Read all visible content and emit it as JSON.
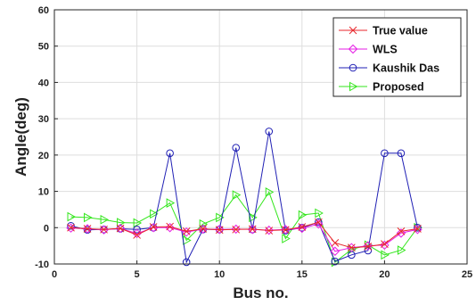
{
  "chart_data": {
    "type": "line",
    "title": "",
    "xlabel": "Bus no.",
    "ylabel": "Angle(deg)",
    "xlim": [
      0,
      25
    ],
    "ylim": [
      -10,
      60
    ],
    "xticks": [
      0,
      5,
      10,
      15,
      20,
      25
    ],
    "yticks": [
      -10,
      0,
      10,
      20,
      30,
      40,
      50,
      60
    ],
    "grid": true,
    "legend_position": "top-right",
    "x": [
      1,
      2,
      3,
      4,
      5,
      6,
      7,
      8,
      9,
      10,
      11,
      12,
      13,
      14,
      15,
      16,
      17,
      18,
      19,
      20,
      21,
      22
    ],
    "series": [
      {
        "name": "True value",
        "color": "#e8262b",
        "marker": "x",
        "values": [
          0.0,
          -0.3,
          -0.5,
          -0.2,
          -2.0,
          0.2,
          0.3,
          -1.0,
          -0.3,
          -0.6,
          -0.5,
          -0.4,
          -0.8,
          -0.6,
          0.2,
          1.5,
          -4.2,
          -5.5,
          -5.2,
          -4.5,
          -1.0,
          -0.3
        ]
      },
      {
        "name": "WLS",
        "color": "#e61ee6",
        "marker": "diamond",
        "values": [
          -0.1,
          -0.3,
          -0.6,
          -0.2,
          -1.6,
          0.0,
          0.0,
          -1.2,
          -0.4,
          -0.5,
          -0.4,
          -0.5,
          -0.7,
          -0.5,
          -0.2,
          1.0,
          -6.5,
          -5.5,
          -5.0,
          -4.8,
          -1.5,
          -0.5
        ]
      },
      {
        "name": "Kaushik Das",
        "color": "#1f1fb4",
        "marker": "circle",
        "values": [
          0.5,
          -0.6,
          -0.5,
          -0.3,
          -0.5,
          0.0,
          20.5,
          -9.5,
          -0.5,
          -0.5,
          22.0,
          -0.5,
          26.5,
          -0.8,
          0.0,
          1.5,
          -9.3,
          -7.5,
          -6.3,
          20.5,
          20.5,
          0.0
        ]
      },
      {
        "name": "Proposed",
        "color": "#33e61c",
        "marker": "triangle-right",
        "values": [
          3.0,
          2.8,
          2.2,
          1.4,
          1.3,
          3.8,
          6.8,
          -3.5,
          1.0,
          2.8,
          9.0,
          2.8,
          9.8,
          -3.0,
          3.5,
          4.0,
          -9.5,
          -6.0,
          -4.8,
          -7.5,
          -6.2,
          0.0
        ]
      }
    ]
  }
}
